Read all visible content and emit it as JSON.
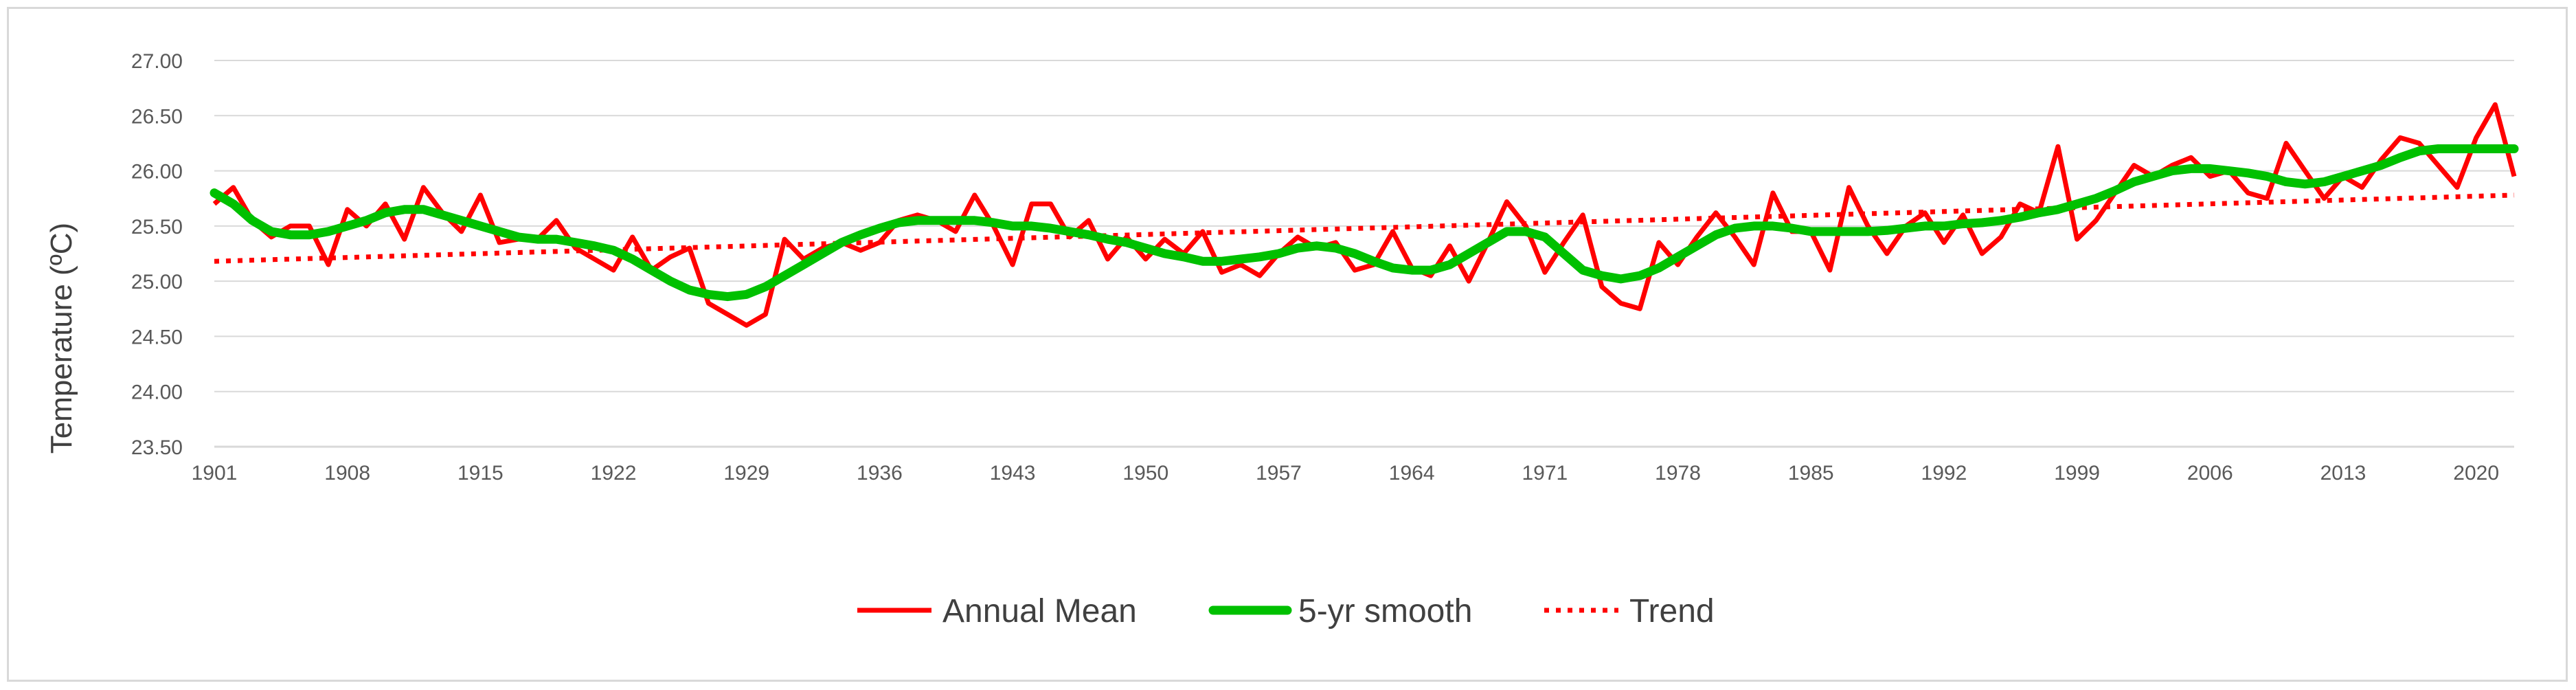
{
  "chart_data": {
    "type": "line",
    "title": "",
    "xlabel": "",
    "ylabel": "Temperature (ºC)",
    "ylim": [
      23.5,
      27.0
    ],
    "yticks": [
      "23.50",
      "24.00",
      "24.50",
      "25.00",
      "25.50",
      "26.00",
      "26.50",
      "27.00"
    ],
    "xlim": [
      1901,
      2022
    ],
    "xticks": [
      "1901",
      "1908",
      "1915",
      "1922",
      "1929",
      "1936",
      "1943",
      "1950",
      "1957",
      "1964",
      "1971",
      "1978",
      "1985",
      "1992",
      "1999",
      "2006",
      "2013",
      "2020"
    ],
    "grid": "horizontal",
    "legend_position": "bottom",
    "x_start": 1901,
    "series": [
      {
        "name": "Annual Mean",
        "color": "#ff0000",
        "style": "solid",
        "values": [
          25.7,
          25.85,
          25.55,
          25.4,
          25.5,
          25.5,
          25.15,
          25.65,
          25.5,
          25.7,
          25.38,
          25.85,
          25.62,
          25.45,
          25.78,
          25.35,
          25.38,
          25.38,
          25.55,
          25.3,
          25.2,
          25.1,
          25.4,
          25.1,
          25.22,
          25.3,
          24.8,
          24.7,
          24.6,
          24.7,
          25.38,
          25.2,
          25.3,
          25.35,
          25.28,
          25.35,
          25.55,
          25.6,
          25.55,
          25.45,
          25.78,
          25.5,
          25.15,
          25.7,
          25.7,
          25.4,
          25.55,
          25.2,
          25.4,
          25.2,
          25.38,
          25.25,
          25.45,
          25.08,
          25.15,
          25.05,
          25.25,
          25.4,
          25.3,
          25.35,
          25.1,
          25.15,
          25.45,
          25.12,
          25.05,
          25.32,
          25.0,
          25.35,
          25.72,
          25.5,
          25.08,
          25.35,
          25.6,
          24.95,
          24.8,
          24.75,
          25.35,
          25.15,
          25.4,
          25.62,
          25.4,
          25.15,
          25.8,
          25.45,
          25.45,
          25.1,
          25.85,
          25.5,
          25.25,
          25.5,
          25.62,
          25.35,
          25.6,
          25.25,
          25.4,
          25.7,
          25.62,
          26.22,
          25.38,
          25.55,
          25.8,
          26.05,
          25.95,
          26.05,
          26.12,
          25.95,
          26.0,
          25.8,
          25.75,
          26.25,
          26.0,
          25.75,
          25.95,
          25.85,
          26.1,
          26.3,
          26.25,
          26.05,
          25.85,
          26.3,
          26.6,
          25.95
        ]
      },
      {
        "name": "5-yr smooth",
        "color": "#00c000",
        "style": "solid",
        "values": [
          25.8,
          25.7,
          25.55,
          25.45,
          25.42,
          25.42,
          25.45,
          25.5,
          25.55,
          25.62,
          25.65,
          25.65,
          25.6,
          25.55,
          25.5,
          25.45,
          25.4,
          25.38,
          25.38,
          25.35,
          25.32,
          25.28,
          25.2,
          25.1,
          25.0,
          24.92,
          24.88,
          24.86,
          24.88,
          24.95,
          25.05,
          25.15,
          25.25,
          25.35,
          25.42,
          25.48,
          25.53,
          25.55,
          25.55,
          25.55,
          25.55,
          25.53,
          25.5,
          25.5,
          25.48,
          25.45,
          25.42,
          25.38,
          25.35,
          25.3,
          25.25,
          25.22,
          25.18,
          25.18,
          25.2,
          25.22,
          25.25,
          25.3,
          25.32,
          25.3,
          25.25,
          25.18,
          25.12,
          25.1,
          25.1,
          25.15,
          25.25,
          25.35,
          25.45,
          25.45,
          25.4,
          25.25,
          25.1,
          25.05,
          25.02,
          25.05,
          25.12,
          25.22,
          25.32,
          25.42,
          25.48,
          25.5,
          25.5,
          25.48,
          25.45,
          25.45,
          25.45,
          25.45,
          25.46,
          25.48,
          25.5,
          25.5,
          25.52,
          25.53,
          25.55,
          25.58,
          25.62,
          25.65,
          25.7,
          25.75,
          25.82,
          25.9,
          25.95,
          26.0,
          26.02,
          26.02,
          26.0,
          25.98,
          25.95,
          25.9,
          25.88,
          25.9,
          25.95,
          26.0,
          26.05,
          26.12,
          26.18,
          26.2,
          26.2,
          26.2,
          26.2,
          26.2
        ]
      },
      {
        "name": "Trend",
        "color": "#ff0000",
        "style": "dotted",
        "start": [
          1901,
          25.18
        ],
        "end": [
          2022,
          25.78
        ]
      }
    ]
  }
}
